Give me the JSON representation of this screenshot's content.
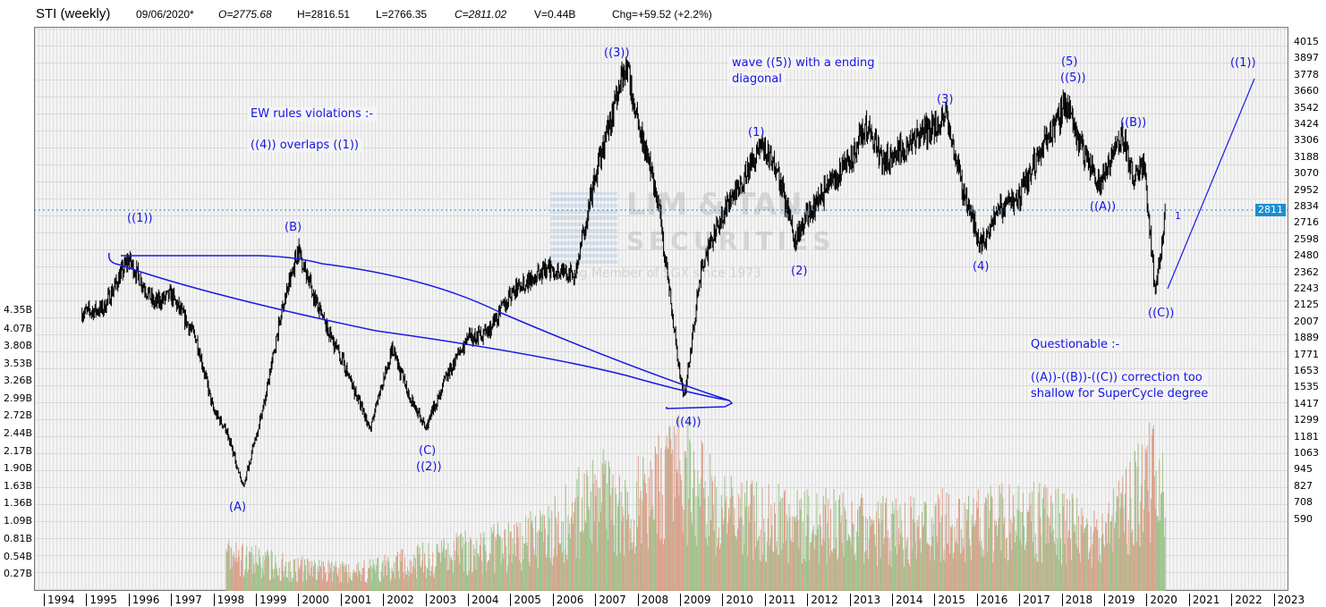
{
  "header": {
    "title": "STI (weekly)",
    "date": "09/06/2020*",
    "open": "O=2775.68",
    "high": "H=2816.51",
    "low": "L=2766.35",
    "close": "C=2811.02",
    "volume": "V=0.44B",
    "change": "Chg=+59.52 (+2.2%)"
  },
  "watermark": {
    "line1": "LIM & TAN",
    "line2": "SECURITIES",
    "line3": "Trading Member of SGX since 1973"
  },
  "last_price_label": "2811",
  "colors": {
    "price_bars": "#000000",
    "annotation": "#1414e6",
    "volume_up": "#9cc48c",
    "volume_down": "#dba08c",
    "last_price_line": "#1a8fd0"
  },
  "annotations": {
    "w1": "((1))",
    "wB": "(B)",
    "wA": "(A)",
    "wC": "(C)",
    "w2": "((2))",
    "w3": "((3))",
    "w4": "((4))",
    "s1": "(1)",
    "s2": "(2)",
    "s3": "(3)",
    "s4": "(4)",
    "s5": "(5)",
    "s5b": "((5))",
    "cB": "((B))",
    "cA": "((A))",
    "cC": "((C))",
    "one": "1",
    "n1": "((1))",
    "diag1": "wave ((5)) with a ending",
    "diag2": "diagonal",
    "ew1": "EW rules violations :-",
    "ew2": "((4)) overlaps ((1))",
    "q1": "Questionable :-",
    "q2": "((A))-((B))-((C)) correction too",
    "q3": "shallow for SuperCycle degree"
  },
  "chart_data": {
    "type": "ohlc",
    "title": "STI (weekly)",
    "price_axis": {
      "position": "right",
      "ticks": [
        4015,
        3897,
        3778,
        3660,
        3542,
        3424,
        3306,
        3188,
        3070,
        2952,
        2834,
        2716,
        2598,
        2480,
        2362,
        2243,
        2125,
        2007,
        1889,
        1771,
        1653,
        1535,
        1417,
        1299,
        1181,
        1063,
        945,
        827,
        708,
        590
      ]
    },
    "volume_axis": {
      "position": "left",
      "ticks": [
        "4.35B",
        "4.07B",
        "3.80B",
        "3.53B",
        "3.26B",
        "2.99B",
        "2.72B",
        "2.44B",
        "2.17B",
        "1.90B",
        "1.63B",
        "1.36B",
        "1.09B",
        "0.81B",
        "0.54B",
        "0.27B"
      ]
    },
    "x_ticks": [
      "1994",
      "1995",
      "1996",
      "1997",
      "1998",
      "1999",
      "2000",
      "2001",
      "2002",
      "2003",
      "2004",
      "2005",
      "2006",
      "2007",
      "2008",
      "2009",
      "2010",
      "2011",
      "2012",
      "2013",
      "2014",
      "2015",
      "2016",
      "2017",
      "2018",
      "2019",
      "2020",
      "2021",
      "2022",
      "2023"
    ],
    "grid": true,
    "last_close": 2811.02,
    "price_path": [
      [
        1994.9,
        2070
      ],
      [
        1995.4,
        2100
      ],
      [
        1996.0,
        2455
      ],
      [
        1996.6,
        2135
      ],
      [
        1997.0,
        2200
      ],
      [
        1997.6,
        1880
      ],
      [
        1998.0,
        1365
      ],
      [
        1998.3,
        1235
      ],
      [
        1998.7,
        818
      ],
      [
        1999.2,
        1430
      ],
      [
        1999.6,
        2070
      ],
      [
        2000.0,
        2532
      ],
      [
        2000.5,
        2070
      ],
      [
        2001.0,
        1750
      ],
      [
        2001.7,
        1235
      ],
      [
        2002.2,
        1810
      ],
      [
        2002.6,
        1490
      ],
      [
        2003.0,
        1235
      ],
      [
        2003.5,
        1620
      ],
      [
        2004.0,
        1880
      ],
      [
        2004.5,
        1940
      ],
      [
        2005.0,
        2200
      ],
      [
        2005.5,
        2325
      ],
      [
        2006.0,
        2390
      ],
      [
        2006.5,
        2325
      ],
      [
        2007.0,
        3030
      ],
      [
        2007.7,
        3867
      ],
      [
        2008.0,
        3480
      ],
      [
        2008.5,
        2840
      ],
      [
        2009.0,
        1620
      ],
      [
        2009.1,
        1460
      ],
      [
        2009.5,
        2390
      ],
      [
        2010.0,
        2776
      ],
      [
        2010.5,
        3030
      ],
      [
        2010.9,
        3290
      ],
      [
        2011.3,
        3097
      ],
      [
        2011.7,
        2583
      ],
      [
        2012.0,
        2776
      ],
      [
        2012.5,
        2970
      ],
      [
        2013.0,
        3160
      ],
      [
        2013.4,
        3418
      ],
      [
        2013.8,
        3160
      ],
      [
        2014.5,
        3290
      ],
      [
        2015.3,
        3482
      ],
      [
        2015.7,
        2904
      ],
      [
        2016.1,
        2551
      ],
      [
        2016.5,
        2808
      ],
      [
        2017.0,
        2904
      ],
      [
        2017.5,
        3225
      ],
      [
        2018.1,
        3578
      ],
      [
        2018.5,
        3225
      ],
      [
        2018.9,
        3000
      ],
      [
        2019.4,
        3354
      ],
      [
        2019.7,
        3033
      ],
      [
        2019.95,
        3130
      ],
      [
        2020.2,
        2230
      ],
      [
        2020.35,
        2551
      ],
      [
        2020.44,
        2811
      ]
    ],
    "volume_level_B": [
      [
        1998.3,
        0.5
      ],
      [
        1999,
        0.45
      ],
      [
        2000,
        0.35
      ],
      [
        2001,
        0.3
      ],
      [
        2002,
        0.35
      ],
      [
        2003,
        0.5
      ],
      [
        2004,
        0.6
      ],
      [
        2005,
        0.7
      ],
      [
        2006,
        0.9
      ],
      [
        2007,
        1.4
      ],
      [
        2008,
        1.3
      ],
      [
        2009,
        1.8
      ],
      [
        2010,
        1.2
      ],
      [
        2011,
        1.1
      ],
      [
        2012,
        1.0
      ],
      [
        2013,
        1.0
      ],
      [
        2014,
        0.9
      ],
      [
        2015,
        1.0
      ],
      [
        2016,
        1.0
      ],
      [
        2017,
        1.1
      ],
      [
        2018,
        1.0
      ],
      [
        2019,
        0.9
      ],
      [
        2020,
        1.7
      ],
      [
        2020.44,
        1.5
      ]
    ]
  }
}
